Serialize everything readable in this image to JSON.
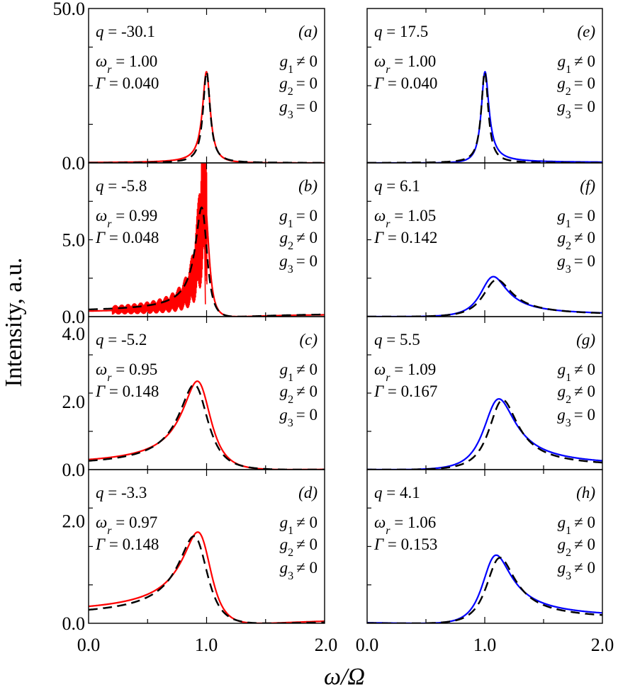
{
  "chart_data": {
    "type": "line",
    "grid": false,
    "xlabel": "ω/Ω",
    "ylabel": "Intensity, a.u.",
    "x_ticks": [
      "0.0",
      "1.0",
      "2.0"
    ],
    "xlim": [
      0,
      2
    ],
    "colors": {
      "left_column_fit": "#ff0000",
      "right_column_fit": "#0000ff",
      "dashed_reference": "#000000"
    },
    "panels": [
      {
        "id": "a",
        "panel_label": "(a)",
        "column": "left",
        "row": 0,
        "params": {
          "q": "q = -30.1",
          "wr": "1.00",
          "gamma": "0.040"
        },
        "conds": [
          "≠ 0",
          "= 0",
          "= 0"
        ],
        "ylim": [
          0,
          50
        ],
        "y_tick_labels": [
          {
            "v": 0,
            "t": "0.0"
          },
          {
            "v": 50,
            "t": "50.0"
          }
        ],
        "solid": {
          "type": "fano",
          "wr": 1.0,
          "g": 0.04,
          "q": -30.1,
          "peak": 29.5
        },
        "dashed": {
          "type": "lorentz",
          "x0": 1.0,
          "g": 0.036,
          "peak": 29.5
        },
        "noise": false
      },
      {
        "id": "b",
        "panel_label": "(b)",
        "column": "left",
        "row": 1,
        "params": {
          "q": "q = -5.8",
          "wr": "0.99",
          "gamma": "0.048"
        },
        "conds": [
          "= 0",
          "≠ 0",
          "= 0"
        ],
        "ylim": [
          0,
          10
        ],
        "y_tick_labels": [
          {
            "v": 0,
            "t": "0.0"
          },
          {
            "v": 5,
            "t": "5.0"
          }
        ],
        "solid": {
          "type": "fano",
          "wr": 0.99,
          "g": 0.048,
          "q": -5.8,
          "peak": 7.6
        },
        "dashed": {
          "type": "fano",
          "wr": 0.97,
          "g": 0.06,
          "q": -5.0,
          "peak": 7.1
        },
        "noise": true
      },
      {
        "id": "c",
        "panel_label": "(c)",
        "column": "left",
        "row": 2,
        "params": {
          "q": "q = -5.2",
          "wr": "0.95",
          "gamma": "0.148"
        },
        "conds": [
          "≠ 0",
          "≠ 0",
          "= 0"
        ],
        "ylim": [
          0,
          4.5
        ],
        "y_tick_labels": [
          {
            "v": 0,
            "t": "0.0"
          },
          {
            "v": 2,
            "t": "2.0"
          },
          {
            "v": 4,
            "t": "4.0"
          }
        ],
        "solid": {
          "type": "fano",
          "wr": 0.95,
          "g": 0.148,
          "q": -5.2,
          "peak": 2.6
        },
        "dashed": {
          "type": "fano",
          "wr": 0.92,
          "g": 0.15,
          "q": -6.0,
          "peak": 2.5
        },
        "noise": false
      },
      {
        "id": "d",
        "panel_label": "(d)",
        "column": "left",
        "row": 3,
        "params": {
          "q": "q = -3.3",
          "wr": "0.97",
          "gamma": "0.148"
        },
        "conds": [
          "≠ 0",
          "≠ 0",
          "≠ 0"
        ],
        "ylim": [
          0,
          3.0
        ],
        "y_tick_labels": [
          {
            "v": 0,
            "t": "0.0"
          },
          {
            "v": 2,
            "t": "2.0"
          }
        ],
        "solid": {
          "type": "fano",
          "wr": 0.97,
          "g": 0.148,
          "q": -3.3,
          "peak": 1.78
        },
        "dashed": {
          "type": "fano",
          "wr": 0.93,
          "g": 0.15,
          "q": -4.0,
          "peak": 1.7
        },
        "noise": false
      },
      {
        "id": "e",
        "panel_label": "(e)",
        "column": "right",
        "row": 0,
        "params": {
          "q": "q = 17.5",
          "wr": "1.00",
          "gamma": "0.040"
        },
        "conds": [
          "≠ 0",
          "= 0",
          "= 0"
        ],
        "ylim": [
          0,
          50
        ],
        "y_tick_labels": [],
        "solid": {
          "type": "fano",
          "wr": 1.0,
          "g": 0.04,
          "q": 17.5,
          "peak": 29.5
        },
        "dashed": {
          "type": "lorentz",
          "x0": 1.0,
          "g": 0.036,
          "peak": 29.5
        },
        "noise": false
      },
      {
        "id": "f",
        "panel_label": "(f)",
        "column": "right",
        "row": 1,
        "params": {
          "q": "q = 6.1",
          "wr": "1.05",
          "gamma": "0.142"
        },
        "conds": [
          "= 0",
          "≠ 0",
          "= 0"
        ],
        "ylim": [
          0,
          10
        ],
        "y_tick_labels": [],
        "solid": {
          "type": "fano",
          "wr": 1.05,
          "g": 0.142,
          "q": 6.1,
          "peak": 2.6
        },
        "dashed": {
          "type": "fano",
          "wr": 1.08,
          "g": 0.15,
          "q": 6.5,
          "peak": 2.4
        },
        "noise": false
      },
      {
        "id": "g",
        "panel_label": "(g)",
        "column": "right",
        "row": 2,
        "params": {
          "q": "q = 5.5",
          "wr": "1.09",
          "gamma": "0.167"
        },
        "conds": [
          "≠ 0",
          "≠ 0",
          "= 0"
        ],
        "ylim": [
          0,
          4.5
        ],
        "y_tick_labels": [],
        "solid": {
          "type": "fano",
          "wr": 1.09,
          "g": 0.167,
          "q": 5.5,
          "peak": 2.08
        },
        "dashed": {
          "type": "fano",
          "wr": 1.13,
          "g": 0.15,
          "q": 6.5,
          "peak": 2.05
        },
        "noise": false
      },
      {
        "id": "h",
        "panel_label": "(h)",
        "column": "right",
        "row": 3,
        "params": {
          "q": "q = 4.1",
          "wr": "1.06",
          "gamma": "0.153"
        },
        "conds": [
          "≠ 0",
          "≠ 0",
          "≠ 0"
        ],
        "ylim": [
          0,
          3.0
        ],
        "y_tick_labels": [],
        "solid": {
          "type": "fano",
          "wr": 1.06,
          "g": 0.153,
          "q": 4.1,
          "peak": 1.33
        },
        "dashed": {
          "type": "fano",
          "wr": 1.1,
          "g": 0.15,
          "q": 5.0,
          "peak": 1.28
        },
        "noise": false
      }
    ]
  }
}
